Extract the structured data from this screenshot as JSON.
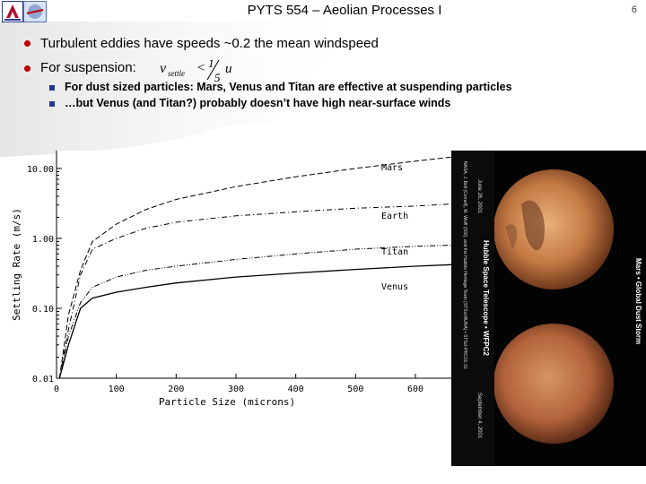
{
  "slide": {
    "title": "PYTS 554 – Aeolian Processes I",
    "page_number": "6",
    "bullets": [
      "Turbulent eddies have speeds ~0.2 the mean windspeed",
      "For suspension:"
    ],
    "formula": {
      "lhs": "v",
      "lhs_sub": "settle",
      "op": "<",
      "num": "1",
      "den": "5",
      "rhs": "u"
    },
    "sub_bullets": [
      "For dust sized particles: Mars, Venus and Titan are effective at suspending particles",
      "…but Venus (and Titan?) probably doesn’t have high near-surface winds"
    ],
    "photo_caption_left": "NASA, J. Bell (Cornell), M. Wolff (SSI), and the Hubble Heritage Team (STScI/AURA) • STScI-PRC01-31",
    "photo_caption_mid": "Hubble Space Telescope • WFPC2",
    "photo_date_top": "June 26, 2001",
    "photo_date_bottom": "September 4, 2001",
    "photo_caption_right": "Mars • Global Dust Storm",
    "colors": {
      "bullet": "#c00000",
      "sub_bullet": "#1f3a93",
      "mars_top": "#c47a45",
      "mars_bottom": "#b2633b"
    }
  },
  "chart_data": {
    "type": "line",
    "xlabel": "Particle Size (microns)",
    "ylabel": "Settling Rate (m/s)",
    "xlim": [
      0,
      660
    ],
    "ylim": [
      0.01,
      18
    ],
    "y_scale": "log",
    "x_ticks": [
      "0",
      "100",
      "200",
      "300",
      "400",
      "500",
      "600"
    ],
    "x_tick_values": [
      0,
      100,
      200,
      300,
      400,
      500,
      600
    ],
    "y_ticks": [
      "10.00",
      "1.00",
      "0.10",
      "0.01"
    ],
    "y_tick_values": [
      10,
      1,
      0.1,
      0.01
    ],
    "series": [
      {
        "name": "Mars",
        "style": "dash",
        "x": [
          5,
          20,
          40,
          60,
          100,
          150,
          200,
          300,
          400,
          500,
          600,
          660
        ],
        "y": [
          0.01,
          0.08,
          0.35,
          0.9,
          1.6,
          2.6,
          3.6,
          5.5,
          7.6,
          10.0,
          12.7,
          14.5
        ]
      },
      {
        "name": "Earth",
        "style": "dashdot",
        "x": [
          5,
          20,
          40,
          60,
          100,
          150,
          200,
          300,
          400,
          500,
          600,
          660
        ],
        "y": [
          0.01,
          0.05,
          0.3,
          0.7,
          1.0,
          1.4,
          1.7,
          2.1,
          2.4,
          2.7,
          2.9,
          3.1
        ]
      },
      {
        "name": "Titan",
        "style": "dashdotdot",
        "x": [
          5,
          20,
          40,
          60,
          100,
          150,
          200,
          300,
          400,
          500,
          600,
          660
        ],
        "y": [
          0.01,
          0.04,
          0.12,
          0.2,
          0.28,
          0.35,
          0.4,
          0.5,
          0.6,
          0.7,
          0.77,
          0.8
        ]
      },
      {
        "name": "Venus",
        "style": "solid",
        "x": [
          5,
          20,
          40,
          60,
          100,
          150,
          200,
          300,
          400,
          500,
          600,
          660
        ],
        "y": [
          0.01,
          0.03,
          0.1,
          0.14,
          0.17,
          0.2,
          0.23,
          0.28,
          0.32,
          0.36,
          0.4,
          0.42
        ]
      }
    ]
  }
}
